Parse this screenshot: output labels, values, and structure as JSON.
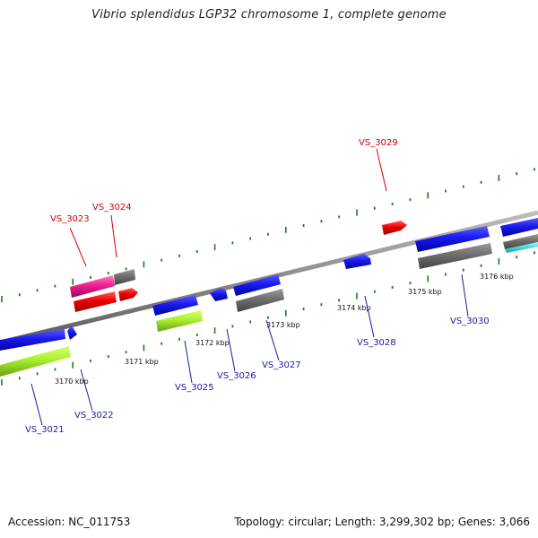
{
  "title": "Vibrio splendidus LGP32 chromosome 1, complete genome",
  "footer": {
    "accession": "Accession: NC_011753",
    "summary": "Topology: circular; Length: 3,299,302 bp; Genes: 3,066"
  },
  "scale": {
    "kbp_labels": [
      "3170 kbp",
      "3171 kbp",
      "3172 kbp",
      "3173 kbp",
      "3174 kbp",
      "3175 kbp",
      "3176 kbp"
    ]
  },
  "genes": {
    "VS_3021": "VS_3021",
    "VS_3022": "VS_3022",
    "VS_3023": "VS_3023",
    "VS_3024": "VS_3024",
    "VS_3025": "VS_3025",
    "VS_3026": "VS_3026",
    "VS_3027": "VS_3027",
    "VS_3028": "VS_3028",
    "VS_3029": "VS_3029",
    "VS_3030": "VS_3030"
  },
  "colors": {
    "forward_label": "#d40000",
    "reverse_label": "#1a1aa6",
    "tick": "#1e7b1e",
    "backbone": "#8a8a8a"
  }
}
